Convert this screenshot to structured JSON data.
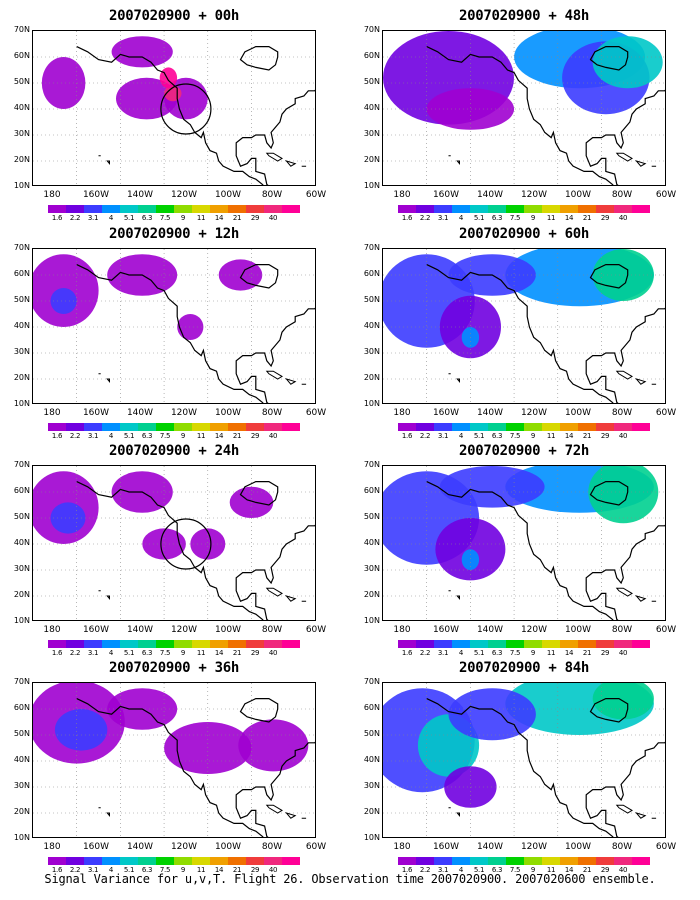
{
  "panels": [
    {
      "title": "2007020900 + 00h"
    },
    {
      "title": "2007020900 + 48h"
    },
    {
      "title": "2007020900 + 12h"
    },
    {
      "title": "2007020900 + 60h"
    },
    {
      "title": "2007020900 + 24h"
    },
    {
      "title": "2007020900 + 72h"
    },
    {
      "title": "2007020900 + 36h"
    },
    {
      "title": "2007020900 + 84h"
    }
  ],
  "lat_labels": [
    "70N",
    "60N",
    "50N",
    "40N",
    "30N",
    "20N",
    "10N"
  ],
  "lon_labels": [
    "180",
    "160W",
    "140W",
    "120W",
    "100W",
    "80W",
    "60W"
  ],
  "colorbar": {
    "labels": [
      "1.6",
      "2.2",
      "3.1",
      "4",
      "5.1",
      "6.3",
      "7.5",
      "9",
      "11",
      "14",
      "21",
      "29",
      "40"
    ],
    "colors": [
      "#a000d0",
      "#7000e0",
      "#3c3cff",
      "#0090ff",
      "#00c8c8",
      "#00d090",
      "#00d200",
      "#90dc00",
      "#d8d800",
      "#f0a000",
      "#f07000",
      "#f03c3c",
      "#f0287d",
      "#ff0096"
    ]
  },
  "caption": "Signal Variance for u,v,T. Flight 26. Observation time 2007020900. 2007020600 ensemble.",
  "map": {
    "lat_range": [
      10,
      70
    ],
    "lon_range": [
      -190,
      -60
    ]
  }
}
